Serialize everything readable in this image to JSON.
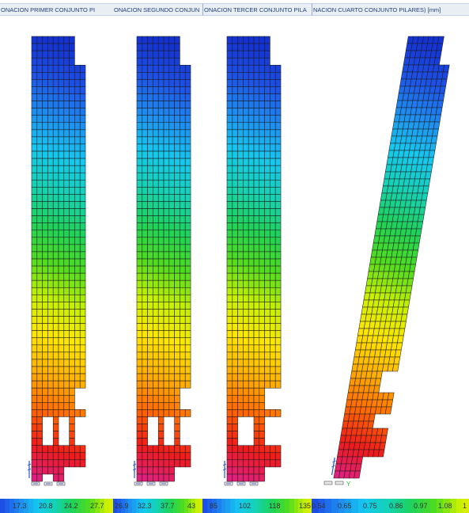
{
  "tabs": [
    "ONACION PRIMER CONJUNTO PI",
    "ONACION SEGUNDO CONJUN",
    "ONACION TERCER CONJUNTO PILA",
    "NACION CUARTO CONJUNTO PILARES) [mm]"
  ],
  "legends": [
    {
      "values": [
        "17.3",
        "20.8",
        "24.2",
        "27.7"
      ]
    },
    {
      "values": [
        "26.9",
        "32.3",
        "37.7",
        "43"
      ]
    },
    {
      "values": [
        "85",
        "102",
        "118",
        "135"
      ]
    },
    {
      "values": [
        "0.54",
        "0.65",
        "0.75",
        "0.86",
        "0.97",
        "1.08",
        "1"
      ]
    }
  ],
  "colormap": [
    "#e0208a",
    "#f01a1a",
    "#ff6a00",
    "#ffb000",
    "#ffe600",
    "#c8f000",
    "#50dc1e",
    "#1ed25a",
    "#14d2b4",
    "#14c8f0",
    "#1e8cf0",
    "#1e50e6",
    "#1432d2"
  ],
  "axis_label": "Y",
  "axis_label_color": "#22cc22",
  "grid_color": "#1a1a1a"
}
